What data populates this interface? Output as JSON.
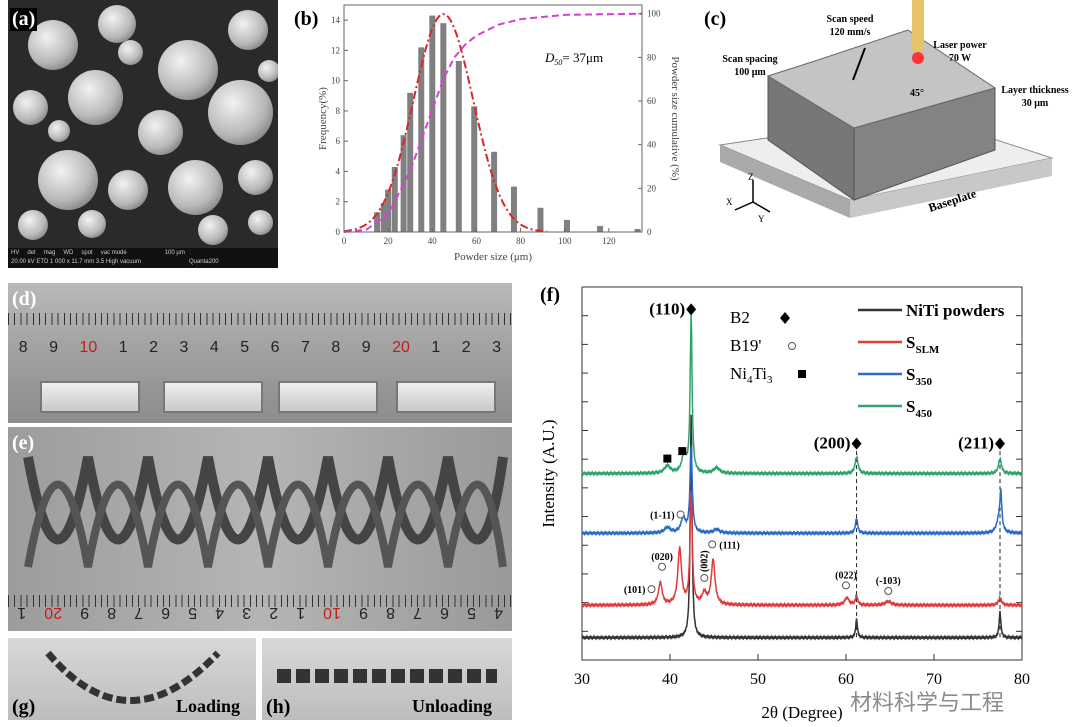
{
  "panels": {
    "a": "(a)",
    "b": "(b)",
    "c": "(c)",
    "d": "(d)",
    "e": "(e)",
    "f": "(f)",
    "g": "(g)",
    "h": "(h)"
  },
  "sem": {
    "info": [
      "HV",
      "det",
      "mag",
      "WD",
      "spot",
      "vac mode"
    ],
    "values": "20.00 kV  ETD  1 000 x  11.7 mm  3.5  High vacuum",
    "scale": "100 μm",
    "instrument": "Quanta200"
  },
  "diagram": {
    "scan_speed": "Scan speed",
    "scan_speed_value": "120 mm/s",
    "laser_power": "Laser power",
    "laser_power_value": "70 W",
    "scan_spacing": "Scan spacing",
    "scan_spacing_value": "100 μm",
    "layer_thickness": "Layer thickness",
    "layer_thickness_value": "30 μm",
    "angle": "45°",
    "baseplate": "Baseplate",
    "axes": [
      "Z",
      "X",
      "Y"
    ]
  },
  "ruler_d": [
    {
      "t": "8"
    },
    {
      "t": "9"
    },
    {
      "t": "10",
      "red": true
    },
    {
      "t": "1"
    },
    {
      "t": "2"
    },
    {
      "t": "3"
    },
    {
      "t": "4"
    },
    {
      "t": "5"
    },
    {
      "t": "6"
    },
    {
      "t": "7"
    },
    {
      "t": "8"
    },
    {
      "t": "9"
    },
    {
      "t": "20",
      "red": true
    },
    {
      "t": "1"
    },
    {
      "t": "2"
    },
    {
      "t": "3"
    }
  ],
  "ruler_e": [
    {
      "t": "4"
    },
    {
      "t": "5"
    },
    {
      "t": "6"
    },
    {
      "t": "7"
    },
    {
      "t": "8"
    },
    {
      "t": "9"
    },
    {
      "t": "10",
      "red": true
    },
    {
      "t": "1"
    },
    {
      "t": "2"
    },
    {
      "t": "3"
    },
    {
      "t": "4"
    },
    {
      "t": "5"
    },
    {
      "t": "6"
    },
    {
      "t": "7"
    },
    {
      "t": "8"
    },
    {
      "t": "9"
    },
    {
      "t": "20",
      "red": true
    },
    {
      "t": "1"
    }
  ],
  "captions": {
    "g": "Loading",
    "h": "Unloading"
  },
  "watermark": "材料科学与工程",
  "colors": {
    "bars": "#808080",
    "fit": "#d62728",
    "cumulative": "#d63fd6",
    "powder": "#333333",
    "slm": "#e03a3a",
    "s350": "#2a6ac8",
    "s450": "#2fa36b"
  },
  "chart_data": [
    {
      "type": "bar",
      "title": "",
      "xlabel": "Powder size (μm)",
      "ylabel": "Frequency(%)",
      "y2label": "Powder size cumulative (%)",
      "xlim": [
        0,
        135
      ],
      "ylim": [
        0,
        15
      ],
      "y2lim": [
        0,
        104
      ],
      "xticks": [
        0,
        20,
        40,
        60,
        80,
        100,
        120
      ],
      "yticks": [
        0,
        2,
        4,
        6,
        8,
        10,
        12,
        14
      ],
      "y2ticks": [
        0,
        20,
        40,
        60,
        80,
        100
      ],
      "annotation": {
        "main": "D",
        "sub": "50",
        "rest": "= 37μm"
      },
      "x": [
        15,
        18,
        20,
        23,
        27,
        30,
        35,
        40,
        45,
        52,
        59,
        68,
        77,
        89,
        101,
        116,
        133
      ],
      "values": [
        1.3,
        1.9,
        2.8,
        4.3,
        6.4,
        9.2,
        12.2,
        14.3,
        13.8,
        11.3,
        8.3,
        5.3,
        3.0,
        1.6,
        0.8,
        0.4,
        0.2
      ],
      "fit": {
        "type": "gaussian",
        "mean": 45,
        "sigma": 13.5,
        "peak": 14.4
      },
      "cumulative": [
        [
          0,
          0
        ],
        [
          10,
          1
        ],
        [
          20,
          8
        ],
        [
          30,
          28
        ],
        [
          40,
          56
        ],
        [
          45,
          70
        ],
        [
          50,
          80
        ],
        [
          55,
          86
        ],
        [
          60,
          90
        ],
        [
          70,
          95
        ],
        [
          80,
          97.5
        ],
        [
          100,
          99.5
        ],
        [
          135,
          100
        ]
      ]
    },
    {
      "type": "line",
      "xlabel": "2θ (Degree)",
      "ylabel": "Intensity (A.U.)",
      "xlim": [
        30,
        80
      ],
      "ylim": [
        0,
        100
      ],
      "xticks": [
        30,
        40,
        50,
        60,
        70,
        80
      ],
      "series": [
        {
          "name": "NiTi powders",
          "sub": "",
          "color": "#333333",
          "baseline": 6,
          "peaks": [
            [
              42.4,
              60,
              0.12
            ],
            [
              61.2,
              5,
              0.12
            ],
            [
              77.5,
              7,
              0.12
            ]
          ]
        },
        {
          "name": "S",
          "sub": "SLM",
          "color": "#e03a3a",
          "baseline": 14.7,
          "peaks": [
            [
              38.9,
              6,
              0.25
            ],
            [
              41.1,
              15,
              0.25
            ],
            [
              42.4,
              30,
              0.15
            ],
            [
              43.9,
              3,
              0.3
            ],
            [
              44.9,
              12,
              0.25
            ],
            [
              60.1,
              2,
              0.3
            ],
            [
              61.2,
              2.5,
              0.15
            ],
            [
              64.8,
              1,
              0.4
            ],
            [
              77.5,
              2,
              0.2
            ]
          ]
        },
        {
          "name": "S",
          "sub": "350",
          "color": "#2a6ac8",
          "baseline": 34,
          "peaks": [
            [
              39.7,
              1.5,
              0.4
            ],
            [
              41.5,
              4,
              0.3
            ],
            [
              42.4,
              23,
              0.15
            ],
            [
              45.3,
              1,
              0.4
            ],
            [
              61.2,
              4,
              0.15
            ],
            [
              77.4,
              4,
              0.3
            ],
            [
              77.6,
              9,
              0.12
            ]
          ]
        },
        {
          "name": "S",
          "sub": "450",
          "color": "#2fa36b",
          "baseline": 50,
          "peaks": [
            [
              39.7,
              2,
              0.4
            ],
            [
              41.6,
              5,
              0.3
            ],
            [
              42.4,
              42,
              0.13
            ],
            [
              45.3,
              1.5,
              0.4
            ],
            [
              61.2,
              4.5,
              0.2
            ],
            [
              77.5,
              4,
              0.2
            ]
          ]
        }
      ],
      "phase_legend": [
        {
          "label": "B2",
          "marker": "diamond"
        },
        {
          "label": "B19'",
          "marker": "circle"
        },
        {
          "label": "Ni4Ti3",
          "main": "Ni",
          "s1": "4",
          "mid": "Ti",
          "s2": "3",
          "marker": "square"
        }
      ],
      "annotations": [
        {
          "text": "(110)",
          "x": 42.4,
          "marker": "diamond",
          "big": true,
          "y": 94
        },
        {
          "text": "(200)",
          "x": 61.2,
          "marker": "diamond",
          "big": true,
          "y": 58
        },
        {
          "text": "(211)",
          "x": 77.5,
          "marker": "diamond",
          "big": true,
          "y": 58
        },
        {
          "marker": "square",
          "x": 39.7,
          "y": 54
        },
        {
          "marker": "square",
          "x": 41.4,
          "y": 56
        },
        {
          "text": "(101)",
          "x": 37.9,
          "marker": "circle",
          "y": 19,
          "side": "left"
        },
        {
          "text": "(020)",
          "x": 39.1,
          "marker": "circle",
          "y": 25,
          "side": "top"
        },
        {
          "text": "(1-11)",
          "x": 41.2,
          "marker": "circle",
          "y": 39,
          "side": "left"
        },
        {
          "text": "(002)",
          "x": 43.9,
          "marker": "circle",
          "y": 22,
          "side": "vtop"
        },
        {
          "text": "(111)",
          "x": 44.8,
          "marker": "circle",
          "y": 31,
          "side": "right"
        },
        {
          "text": "(022)",
          "x": 60.0,
          "marker": "circle",
          "y": 20,
          "side": "top"
        },
        {
          "text": "(-103)",
          "x": 64.8,
          "marker": "circle",
          "y": 18.5,
          "side": "top"
        }
      ]
    }
  ]
}
